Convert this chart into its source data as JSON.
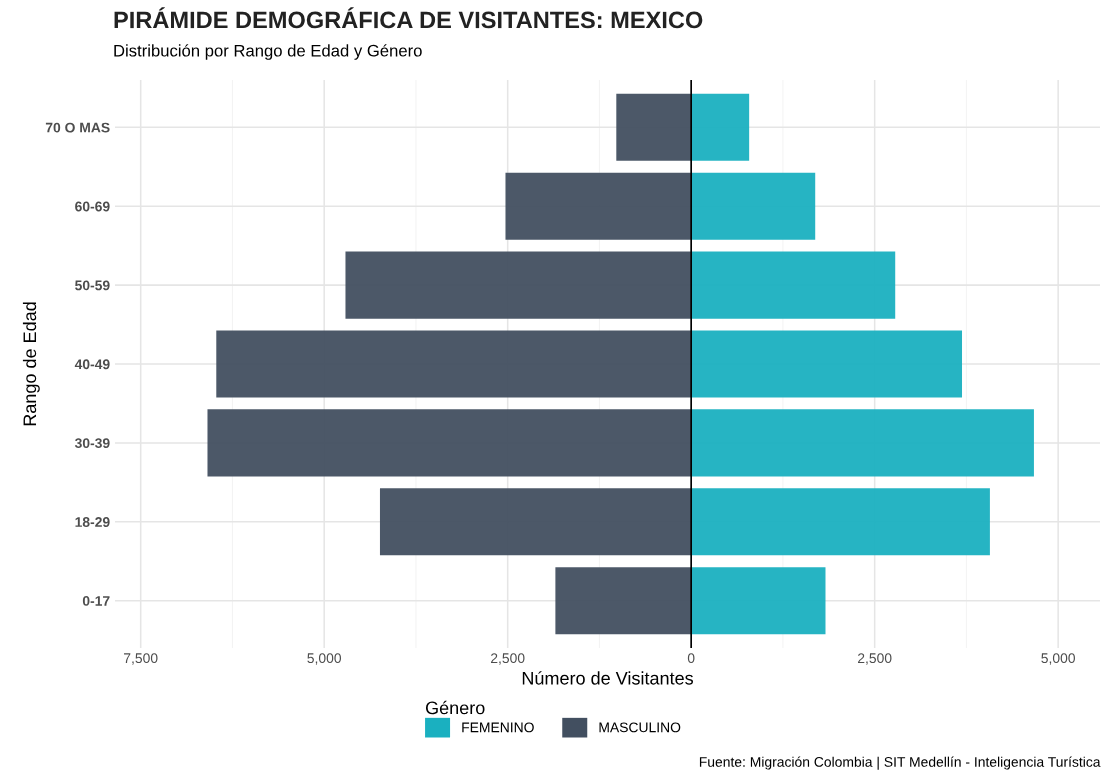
{
  "chart_data": {
    "type": "bar",
    "orientation": "horizontal",
    "title": "PIRÁMIDE DEMOGRÁFICA DE VISITANTES: MEXICO",
    "subtitle": "Distribución por Rango de Edad y Género",
    "xlabel": "Número de Visitantes",
    "ylabel": "Rango de Edad",
    "legend_title": "Género",
    "categories": [
      "70 O MAS",
      "60-69",
      "50-59",
      "40-49",
      "30-39",
      "18-29",
      "0-17"
    ],
    "series": [
      {
        "name": "FEMENINO",
        "color": "#1ab0c0",
        "values": [
          790,
          1690,
          2780,
          3690,
          4670,
          4070,
          1830
        ]
      },
      {
        "name": "MASCULINO",
        "color": "#424f60",
        "values": [
          -1020,
          -2530,
          -4710,
          -6470,
          -6590,
          -4240,
          -1850
        ]
      }
    ],
    "xlim": [
      -7850,
      5570
    ],
    "xticks": [
      {
        "value": -7500,
        "label": "7,500"
      },
      {
        "value": -6250,
        "label": null
      },
      {
        "value": -5000,
        "label": "5,000"
      },
      {
        "value": -3750,
        "label": null
      },
      {
        "value": -2500,
        "label": "2,500"
      },
      {
        "value": -1250,
        "label": null
      },
      0,
      {
        "value": 1250,
        "label": null
      },
      {
        "value": 2500,
        "label": "2,500"
      },
      {
        "value": 3750,
        "label": null
      },
      {
        "value": 5000,
        "label": "5,000"
      }
    ],
    "ref_lines": [
      {
        "axis": "x",
        "value": 0,
        "color": "#000000"
      }
    ],
    "grid": true,
    "legend": "bottom",
    "annotations": [
      "Fuente: Migración Colombia | SIT Medellín - Inteligencia Turística"
    ]
  }
}
